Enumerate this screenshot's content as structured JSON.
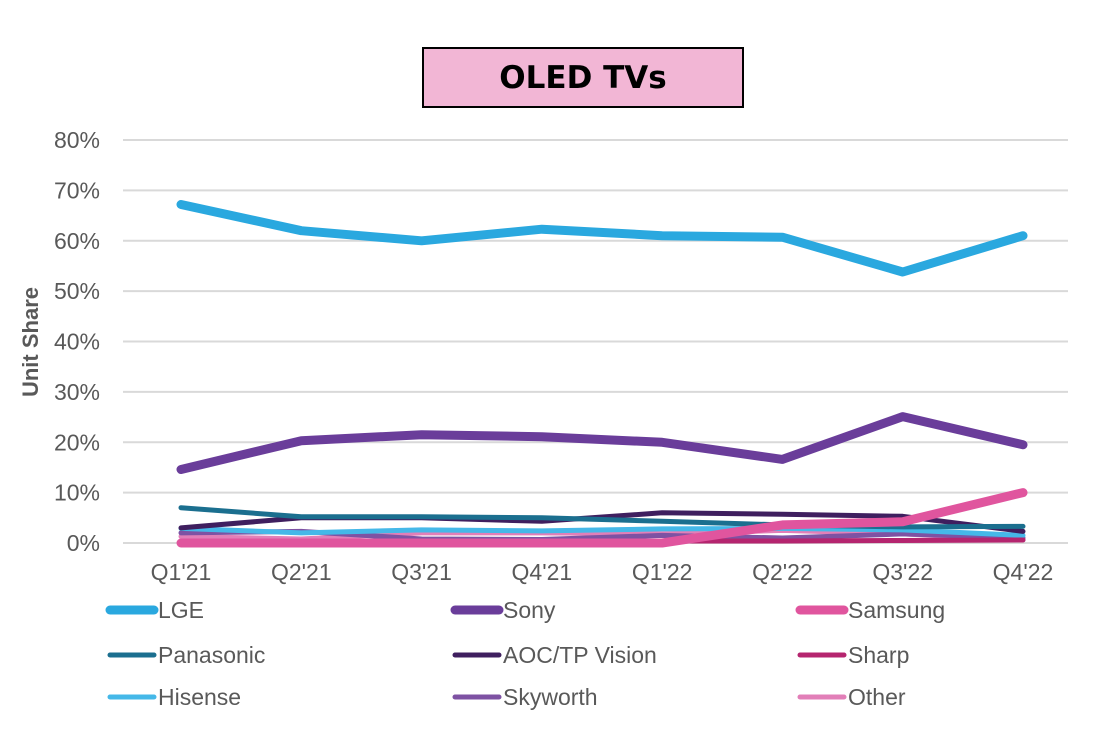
{
  "chart_data": {
    "type": "line",
    "title": "OLED TVs",
    "xlabel": "",
    "ylabel": "Unit Share",
    "ylim": [
      0,
      80
    ],
    "yticks": [
      0,
      10,
      20,
      30,
      40,
      50,
      60,
      70,
      80
    ],
    "ytick_labels": [
      "0%",
      "10%",
      "20%",
      "30%",
      "40%",
      "50%",
      "60%",
      "70%",
      "80%"
    ],
    "grid": true,
    "legend_position": "bottom",
    "categories": [
      "Q1'21",
      "Q2'21",
      "Q3'21",
      "Q4'21",
      "Q1'22",
      "Q2'22",
      "Q3'22",
      "Q4'22"
    ],
    "series": [
      {
        "name": "LGE",
        "color": "#2aa8df",
        "width": "thick",
        "values": [
          67.2,
          62.0,
          60.0,
          62.3,
          61.0,
          60.7,
          53.8,
          61.0
        ]
      },
      {
        "name": "Sony",
        "color": "#6a3d9a",
        "width": "thick",
        "values": [
          14.6,
          20.3,
          21.5,
          21.1,
          20.0,
          16.6,
          25.1,
          19.5
        ]
      },
      {
        "name": "Samsung",
        "color": "#e0559e",
        "width": "thick",
        "values": [
          0.0,
          0.0,
          0.0,
          0.0,
          0.0,
          3.6,
          4.2,
          10.0
        ]
      },
      {
        "name": "Panasonic",
        "color": "#1b6f8f",
        "width": "normal",
        "values": [
          7.0,
          5.2,
          5.2,
          5.0,
          4.3,
          3.6,
          3.2,
          3.3
        ]
      },
      {
        "name": "AOC/TP Vision",
        "color": "#3f1f5f",
        "width": "normal",
        "values": [
          3.0,
          5.0,
          5.0,
          4.3,
          6.0,
          5.7,
          5.3,
          2.3
        ]
      },
      {
        "name": "Sharp",
        "color": "#b5256f",
        "width": "normal",
        "values": [
          0.3,
          0.4,
          0.4,
          0.4,
          0.4,
          0.4,
          0.5,
          0.6
        ]
      },
      {
        "name": "Hisense",
        "color": "#45b8e8",
        "width": "normal",
        "values": [
          2.9,
          2.0,
          2.6,
          2.4,
          2.8,
          2.9,
          2.6,
          1.5
        ]
      },
      {
        "name": "Skyworth",
        "color": "#7e52a3",
        "width": "normal",
        "values": [
          2.0,
          2.3,
          0.8,
          0.7,
          1.5,
          1.0,
          1.8,
          1.0
        ]
      },
      {
        "name": "Other",
        "color": "#e27fb8",
        "width": "normal",
        "values": [
          1.3,
          0.8,
          2.0,
          2.0,
          1.8,
          2.5,
          1.8,
          0.6
        ]
      }
    ]
  }
}
